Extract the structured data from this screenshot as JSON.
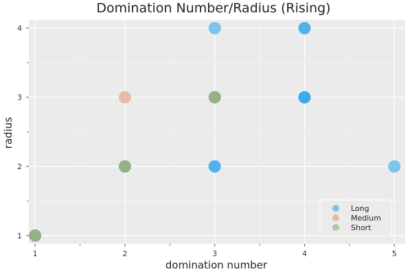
{
  "chart_data": {
    "type": "scatter",
    "title": "Domination Number/Radius (Rising)",
    "xlabel": "domination number",
    "ylabel": "radius",
    "xlim": [
      0.93,
      5.12
    ],
    "ylim": [
      0.88,
      4.12
    ],
    "xticks": [
      1,
      2,
      3,
      4,
      5
    ],
    "yticks": [
      1,
      2,
      3,
      4
    ],
    "grid": true,
    "legend_position": "bottom-right",
    "background": "#ebebeb",
    "series": [
      {
        "name": "Long",
        "color": "#31a7ee",
        "points": [
          {
            "x": 1,
            "y": 1
          },
          {
            "x": 2,
            "y": 2
          },
          {
            "x": 3,
            "y": 2
          },
          {
            "x": 3,
            "y": 2
          },
          {
            "x": 3,
            "y": 3
          },
          {
            "x": 3,
            "y": 4
          },
          {
            "x": 4,
            "y": 3
          },
          {
            "x": 4,
            "y": 3
          },
          {
            "x": 4,
            "y": 3
          },
          {
            "x": 4,
            "y": 4
          },
          {
            "x": 4,
            "y": 4
          },
          {
            "x": 5,
            "y": 2
          }
        ]
      },
      {
        "name": "Medium",
        "color": "#e8987c",
        "points": [
          {
            "x": 1,
            "y": 1
          },
          {
            "x": 2,
            "y": 2
          },
          {
            "x": 2,
            "y": 3
          },
          {
            "x": 3,
            "y": 3
          }
        ]
      },
      {
        "name": "Short",
        "color": "#7ab870",
        "points": [
          {
            "x": 1,
            "y": 1
          },
          {
            "x": 2,
            "y": 2
          },
          {
            "x": 3,
            "y": 3
          }
        ]
      }
    ]
  }
}
